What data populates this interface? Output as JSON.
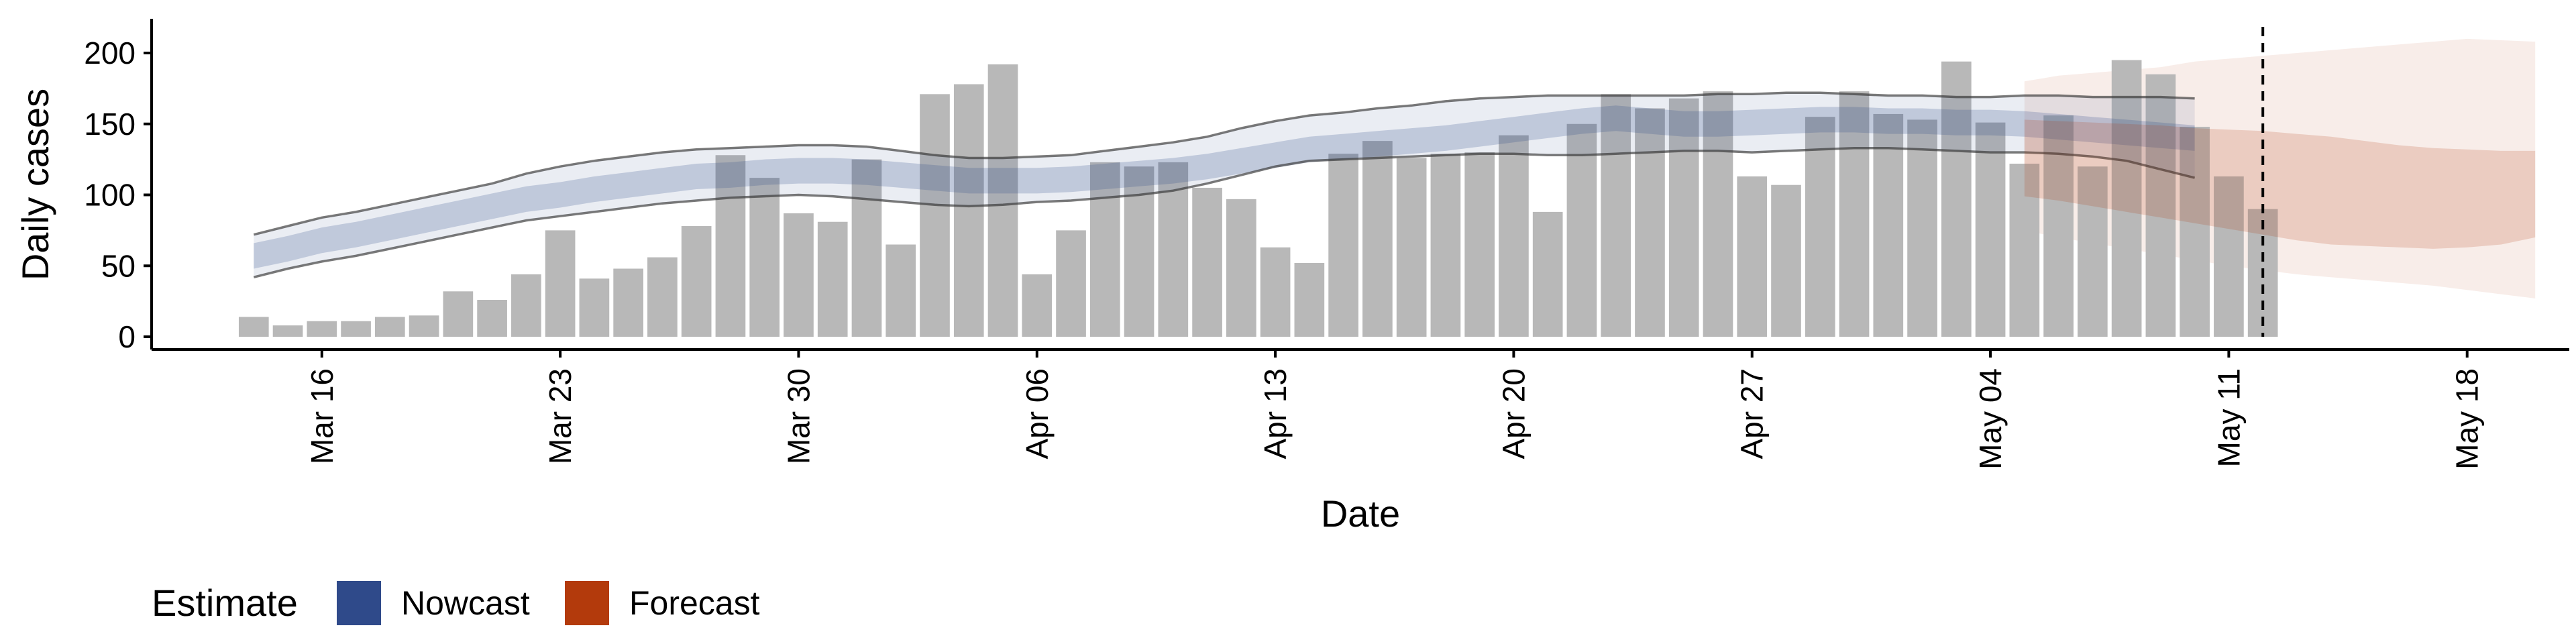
{
  "chart_data": {
    "type": "bar",
    "title": "",
    "xlabel": "Date",
    "ylabel": "Daily cases",
    "ylim": [
      0,
      220
    ],
    "yticks": [
      0,
      50,
      100,
      150,
      200
    ],
    "xticks": [
      {
        "date": "2020-03-16",
        "label": "Mar 16"
      },
      {
        "date": "2020-03-23",
        "label": "Mar 23"
      },
      {
        "date": "2020-03-30",
        "label": "Mar 30"
      },
      {
        "date": "2020-04-06",
        "label": "Apr 06"
      },
      {
        "date": "2020-04-13",
        "label": "Apr 13"
      },
      {
        "date": "2020-04-20",
        "label": "Apr 20"
      },
      {
        "date": "2020-04-27",
        "label": "Apr 27"
      },
      {
        "date": "2020-05-04",
        "label": "May 04"
      },
      {
        "date": "2020-05-11",
        "label": "May 11"
      },
      {
        "date": "2020-05-18",
        "label": "May 18"
      }
    ],
    "xlim": [
      "2020-03-11",
      "2020-05-21"
    ],
    "grid": false,
    "legend": {
      "title": "Estimate",
      "placement": "bottom-left",
      "items": [
        {
          "label": "Nowcast",
          "color": "#2F4A8A"
        },
        {
          "label": "Forecast",
          "color": "#B33A0C"
        }
      ]
    },
    "bars": {
      "name": "Daily cases",
      "color": "#B8B8B8",
      "start": "2020-03-14",
      "values": [
        14,
        8,
        11,
        11,
        14,
        15,
        32,
        26,
        44,
        75,
        41,
        48,
        56,
        78,
        128,
        112,
        87,
        81,
        125,
        65,
        171,
        178,
        192,
        44,
        75,
        123,
        120,
        123,
        105,
        97,
        63,
        52,
        129,
        138,
        126,
        129,
        130,
        142,
        88,
        150,
        171,
        161,
        168,
        173,
        113,
        107,
        155,
        173,
        157,
        153,
        194,
        151,
        122,
        156,
        120,
        195,
        185,
        148,
        113,
        90
      ]
    },
    "vline": {
      "date": "2020-05-12",
      "style": "dashed"
    },
    "nowcast": {
      "color": "#2F4A8A",
      "start": "2020-03-14",
      "median": [
        57,
        62,
        68,
        72,
        77,
        82,
        87,
        92,
        97,
        100,
        104,
        107,
        110,
        113,
        114,
        116,
        117,
        117,
        116,
        114,
        112,
        110,
        110,
        110,
        111,
        113,
        115,
        117,
        120,
        124,
        128,
        132,
        134,
        136,
        138,
        140,
        143,
        146,
        149,
        152,
        154,
        152,
        150,
        150,
        151,
        152,
        153,
        153,
        152,
        152,
        151,
        151,
        150,
        148,
        146,
        144,
        142,
        140
      ],
      "lower_inner": [
        48,
        53,
        59,
        63,
        68,
        73,
        78,
        83,
        88,
        91,
        95,
        98,
        101,
        104,
        105,
        107,
        108,
        108,
        107,
        105,
        103,
        101,
        101,
        101,
        102,
        104,
        106,
        108,
        111,
        115,
        119,
        123,
        125,
        127,
        129,
        131,
        134,
        137,
        140,
        143,
        145,
        143,
        141,
        141,
        142,
        143,
        144,
        144,
        143,
        143,
        142,
        142,
        141,
        139,
        137,
        135,
        133,
        131
      ],
      "upper_inner": [
        66,
        71,
        77,
        81,
        86,
        91,
        96,
        101,
        106,
        109,
        113,
        116,
        119,
        122,
        123,
        125,
        126,
        126,
        125,
        123,
        121,
        119,
        119,
        119,
        120,
        122,
        124,
        126,
        129,
        133,
        137,
        141,
        143,
        145,
        147,
        149,
        152,
        155,
        158,
        161,
        163,
        161,
        159,
        159,
        160,
        161,
        162,
        162,
        161,
        161,
        160,
        160,
        159,
        157,
        155,
        153,
        151,
        149
      ],
      "lower_outer": [
        42,
        48,
        53,
        57,
        62,
        67,
        72,
        77,
        82,
        85,
        88,
        91,
        94,
        96,
        98,
        99,
        100,
        99,
        97,
        95,
        93,
        92,
        93,
        95,
        96,
        98,
        100,
        103,
        108,
        114,
        120,
        124,
        125,
        126,
        127,
        128,
        129,
        129,
        128,
        128,
        129,
        130,
        131,
        131,
        130,
        131,
        132,
        133,
        133,
        132,
        131,
        130,
        130,
        129,
        127,
        124,
        118,
        112
      ],
      "upper_outer": [
        72,
        78,
        84,
        88,
        93,
        98,
        103,
        108,
        115,
        120,
        124,
        127,
        130,
        132,
        133,
        134,
        135,
        135,
        134,
        131,
        128,
        126,
        126,
        127,
        128,
        131,
        134,
        137,
        141,
        147,
        152,
        156,
        158,
        161,
        163,
        166,
        168,
        169,
        170,
        170,
        170,
        170,
        170,
        171,
        171,
        172,
        172,
        171,
        170,
        170,
        169,
        169,
        170,
        170,
        169,
        169,
        169,
        168
      ]
    },
    "forecast": {
      "color": "#B33A0C",
      "start": "2020-05-05",
      "median": [
        122,
        121,
        120,
        119,
        118,
        117,
        117,
        116,
        115,
        114,
        114,
        113,
        113,
        112,
        112,
        111
      ],
      "lower_inner": [
        99,
        96,
        92,
        88,
        84,
        80,
        76,
        72,
        68,
        65,
        64,
        63,
        62,
        63,
        65,
        70
      ],
      "upper_inner": [
        153,
        152,
        151,
        150,
        149,
        147,
        146,
        145,
        143,
        141,
        138,
        135,
        133,
        132,
        131,
        131
      ],
      "lower_outer": [
        75,
        70,
        66,
        62,
        58,
        54,
        50,
        47,
        44,
        42,
        40,
        38,
        36,
        33,
        30,
        27
      ],
      "upper_outer": [
        180,
        184,
        186,
        188,
        190,
        194,
        196,
        198,
        200,
        202,
        204,
        206,
        208,
        210,
        209,
        208
      ]
    }
  }
}
